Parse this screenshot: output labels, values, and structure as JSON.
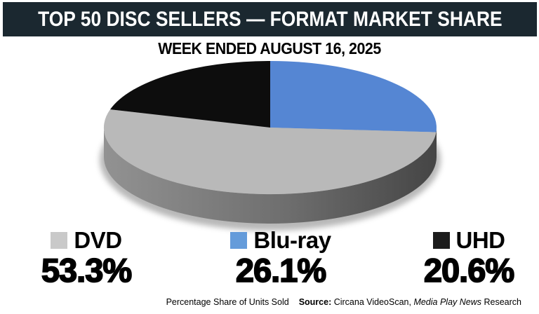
{
  "header": {
    "title": "TOP 50 DISC SELLERS — FORMAT MARKET SHARE",
    "bg_color": "#1b2830",
    "text_color": "#ffffff"
  },
  "subtitle": "WEEK ENDED AUGUST 16, 2025",
  "chart_data": {
    "type": "pie",
    "style": "3d",
    "title": "TOP 50 DISC SELLERS — FORMAT MARKET SHARE",
    "subtitle": "WEEK ENDED AUGUST 16, 2025",
    "start_angle_deg": 0,
    "direction": "clockwise",
    "unit": "percent",
    "slices": [
      {
        "label": "Blu-ray",
        "value": 26.1,
        "color": "#5586d3"
      },
      {
        "label": "DVD",
        "value": 53.3,
        "color": "#b9b9b9"
      },
      {
        "label": "UHD",
        "value": 20.6,
        "color": "#0d0d0d"
      }
    ],
    "legend_position": "bottom"
  },
  "legend": {
    "items": [
      {
        "label": "DVD",
        "pct": "53.3%",
        "swatch_color": "#c9c9c9"
      },
      {
        "label": "Blu-ray",
        "pct": "26.1%",
        "swatch_color": "#649bda"
      },
      {
        "label": "UHD",
        "pct": "20.6%",
        "swatch_color": "#1c1c1c"
      }
    ]
  },
  "footer": {
    "note": "Percentage Share of Units Sold",
    "source_label": "Source:",
    "source_text": " Circana VideoScan, ",
    "source_italic": "Media Play News",
    "source_suffix": " Research"
  }
}
